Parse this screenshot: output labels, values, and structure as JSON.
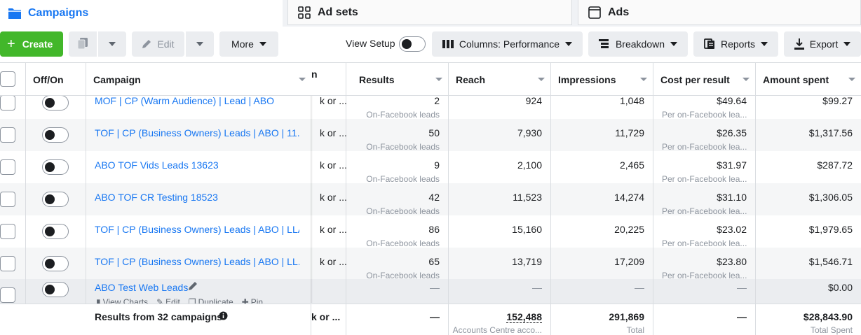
{
  "tabs": {
    "campaigns": "Campaigns",
    "adsets": "Ad sets",
    "ads": "Ads"
  },
  "toolbar": {
    "create": "Create",
    "edit": "Edit",
    "more": "More",
    "view_setup": "View Setup",
    "columns": "Columns: Performance",
    "breakdown": "Breakdown",
    "reports": "Reports",
    "export": "Export"
  },
  "headers": {
    "off_on": "Off/On",
    "campaign": "Campaign",
    "delivery_partial": "n",
    "results": "Results",
    "reach": "Reach",
    "impressions": "Impressions",
    "cost_per_result": "Cost per result",
    "amount_spent": "Amount spent"
  },
  "top_partial_row": {
    "name": "MOF | CP (Warm Audience) | Lead | ABO",
    "results": "2",
    "results_sub": "On-Facebook leads",
    "reach": "924",
    "impressions": "1,048",
    "cost": "$49.64",
    "cost_sub": "Per on-Facebook lea...",
    "spent": "$99.27"
  },
  "rows": [
    {
      "name": "TOF | CP (Business Owners) Leads | ABO | 11...",
      "delivery": "k or ...",
      "results": "50",
      "results_sub": "On-Facebook leads",
      "reach": "7,930",
      "impressions": "11,729",
      "cost": "$26.35",
      "cost_sub": "Per on-Facebook lea...",
      "spent": "$1,317.56"
    },
    {
      "name": "ABO TOF Vids Leads 13623",
      "delivery": "k or ...",
      "results": "9",
      "results_sub": "On-Facebook leads",
      "reach": "2,100",
      "impressions": "2,465",
      "cost": "$31.97",
      "cost_sub": "Per on-Facebook lea...",
      "spent": "$287.72"
    },
    {
      "name": "ABO TOF CR Testing 18523",
      "delivery": "k or ...",
      "results": "42",
      "results_sub": "On-Facebook leads",
      "reach": "11,523",
      "impressions": "14,274",
      "cost": "$31.10",
      "cost_sub": "Per on-Facebook lea...",
      "spent": "$1,306.05"
    },
    {
      "name": "TOF | CP (Business Owners) Leads | ABO | LLA",
      "delivery": "k or ...",
      "results": "86",
      "results_sub": "On-Facebook leads",
      "reach": "15,160",
      "impressions": "20,225",
      "cost": "$23.02",
      "cost_sub": "Per on-Facebook lea...",
      "spent": "$1,979.65"
    },
    {
      "name": "TOF | CP (Business Owners) Leads | ABO | LL...",
      "delivery": "k or ...",
      "results": "65",
      "results_sub": "On-Facebook leads",
      "reach": "13,719",
      "impressions": "17,209",
      "cost": "$23.80",
      "cost_sub": "Per on-Facebook lea...",
      "spent": "$1,546.71"
    }
  ],
  "hover_row": {
    "name": "ABO Test Web Leads",
    "results": "—",
    "reach": "—",
    "impressions": "—",
    "cost": "—",
    "spent": "$0.00",
    "actions": [
      "View Charts",
      "Edit",
      "Duplicate",
      "Pin"
    ]
  },
  "footer": {
    "label": "Results from 32 campaigns",
    "delivery": "k or ...",
    "results": "—",
    "reach": "152,488",
    "reach_sub": "Accounts Centre acco...",
    "impressions": "291,869",
    "impressions_sub": "Total",
    "cost": "—",
    "spent": "$28,843.90",
    "spent_sub": "Total Spent"
  },
  "colors": {
    "accent": "#1877f2",
    "create_green": "#42b72a",
    "border": "#dadde1"
  }
}
